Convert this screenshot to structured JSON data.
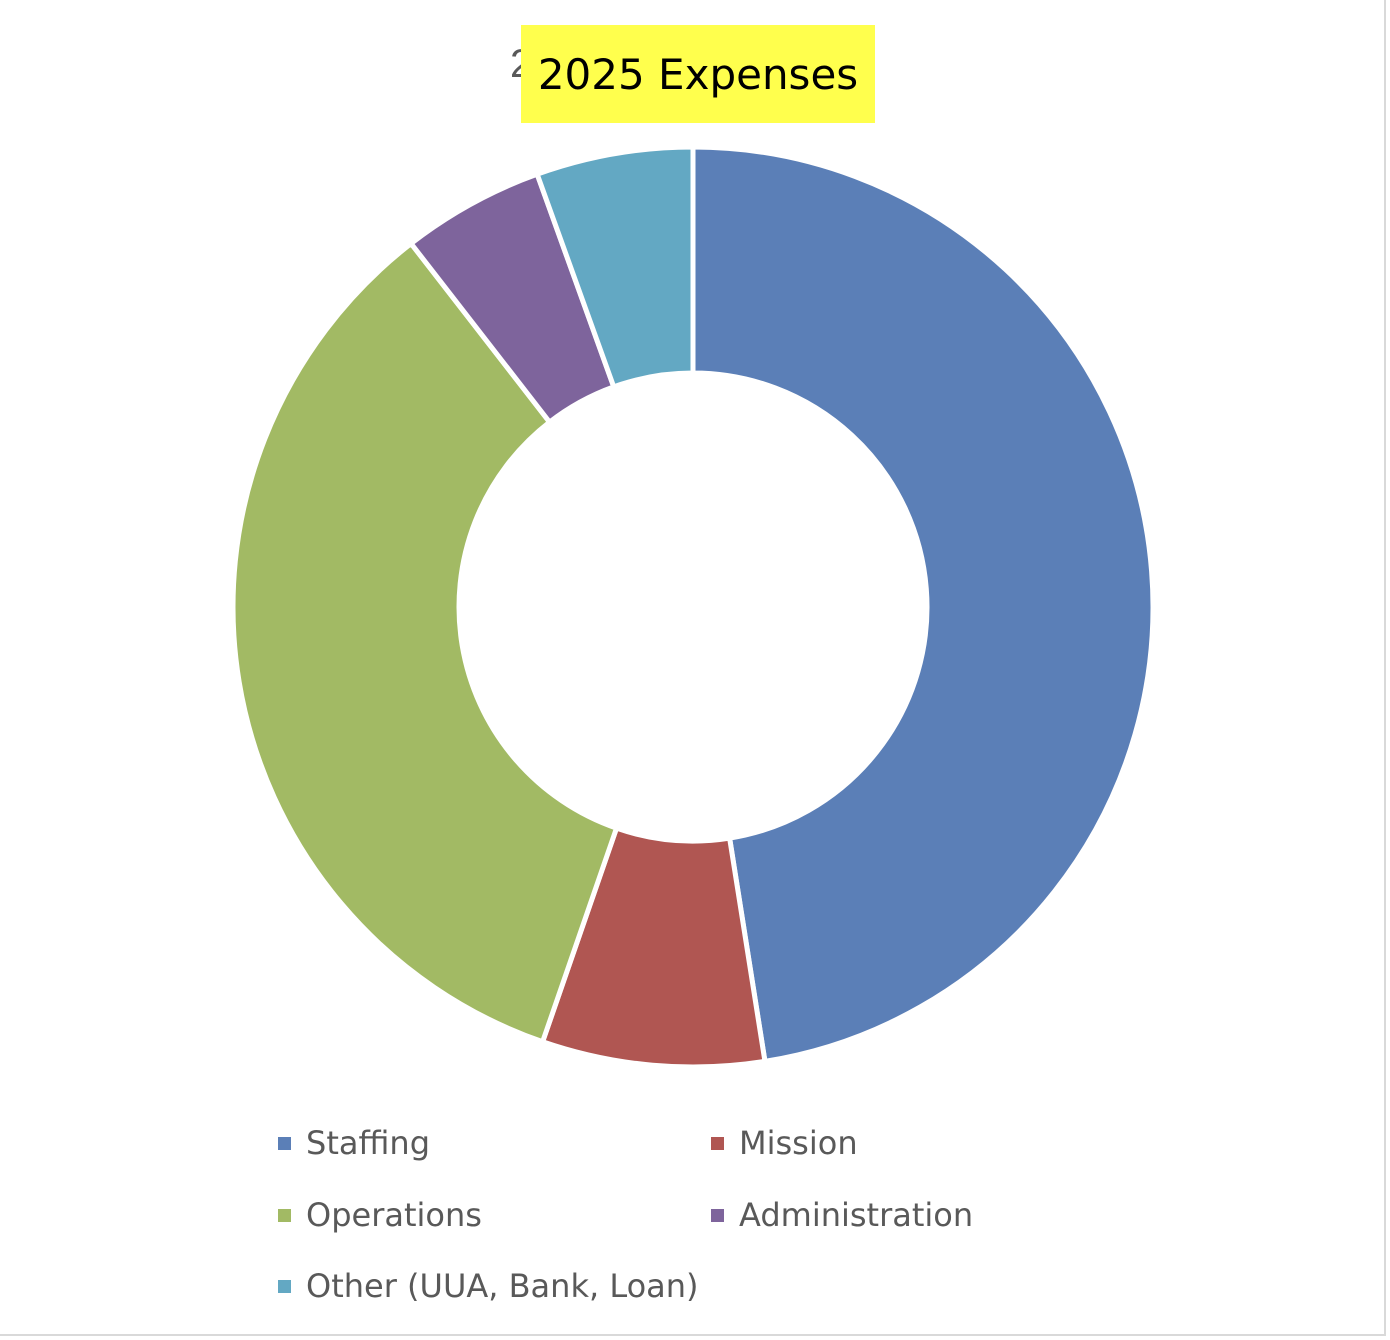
{
  "chart_data": {
    "type": "donut",
    "title": "2025 Expenses",
    "categories": [
      "Staffing",
      "Mission",
      "Operations",
      "Administration",
      "Other (UUA, Bank, Loan)"
    ],
    "values": [
      47.5,
      7.8,
      34.2,
      5.0,
      5.5
    ],
    "unit": "%",
    "colors": [
      "#5b7fb7",
      "#b05652",
      "#a2ba64",
      "#7e649c",
      "#63a8c3"
    ],
    "legend": {
      "position": "bottom",
      "items": [
        {
          "label": "Staffing",
          "color": "#5b7fb7"
        },
        {
          "label": "Mission",
          "color": "#b05652"
        },
        {
          "label": "Operations",
          "color": "#a2ba64"
        },
        {
          "label": "Administration",
          "color": "#7e649c"
        },
        {
          "label": "Other (UUA, Bank, Loan)",
          "color": "#63a8c3"
        }
      ]
    }
  }
}
